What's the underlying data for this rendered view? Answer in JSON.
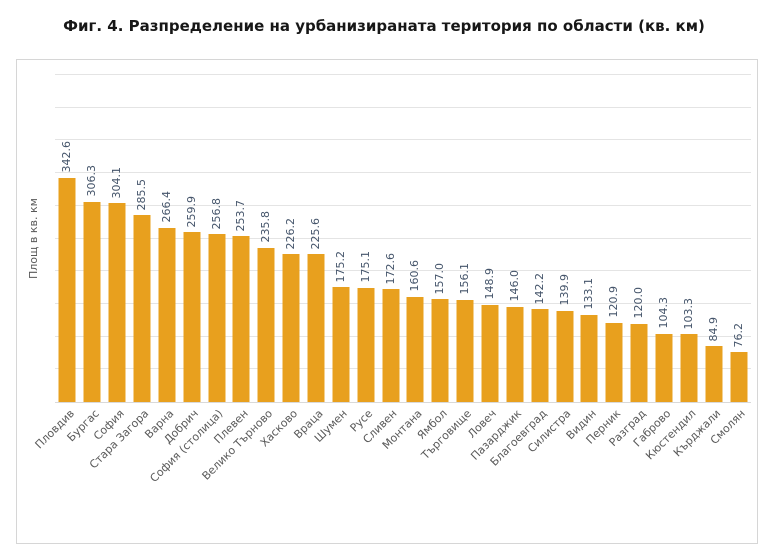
{
  "title": "Фиг. 4. Разпределение на урбанизираната територия по области (кв. км)",
  "chart_data": {
    "type": "bar",
    "title": "Фиг. 4. Разпределение на урбанизираната територия по области (кв. км)",
    "xlabel": "",
    "ylabel": "Площ в кв. км",
    "ylim": [
      0,
      500
    ],
    "grid_step": 50,
    "grid": true,
    "legend": false,
    "bar_color": "#e8a01e",
    "categories": [
      "Пловдив",
      "Бургас",
      "София",
      "Стара Загора",
      "Варна",
      "Добрич",
      "София (столица)",
      "Плевен",
      "Велико Търново",
      "Хасково",
      "Враца",
      "Шумен",
      "Русе",
      "Сливен",
      "Монтана",
      "Ямбол",
      "Търговище",
      "Ловеч",
      "Пазарджик",
      "Благоевград",
      "Силистра",
      "Видин",
      "Перник",
      "Разград",
      "Габрово",
      "Кюстендил",
      "Кърджали",
      "Смолян"
    ],
    "values": [
      342.6,
      306.3,
      304.1,
      285.5,
      266.4,
      259.9,
      256.8,
      253.7,
      235.8,
      226.2,
      225.6,
      175.2,
      175.1,
      172.6,
      160.6,
      157.0,
      156.1,
      148.9,
      146.0,
      142.2,
      139.9,
      133.1,
      120.9,
      120.0,
      104.3,
      103.3,
      84.9,
      76.2
    ],
    "value_labels": [
      "342.6",
      "306.3",
      "304.1",
      "285.5",
      "266.4",
      "259.9",
      "256.8",
      "253.7",
      "235.8",
      "226.2",
      "225.6",
      "175.2",
      "175.1",
      "172.6",
      "160.6",
      "157.0",
      "156.1",
      "148.9",
      "146.0",
      "142.2",
      "139.9",
      "133.1",
      "120.9",
      "120.0",
      "104.3",
      "103.3",
      "84.9",
      "76.2"
    ]
  }
}
